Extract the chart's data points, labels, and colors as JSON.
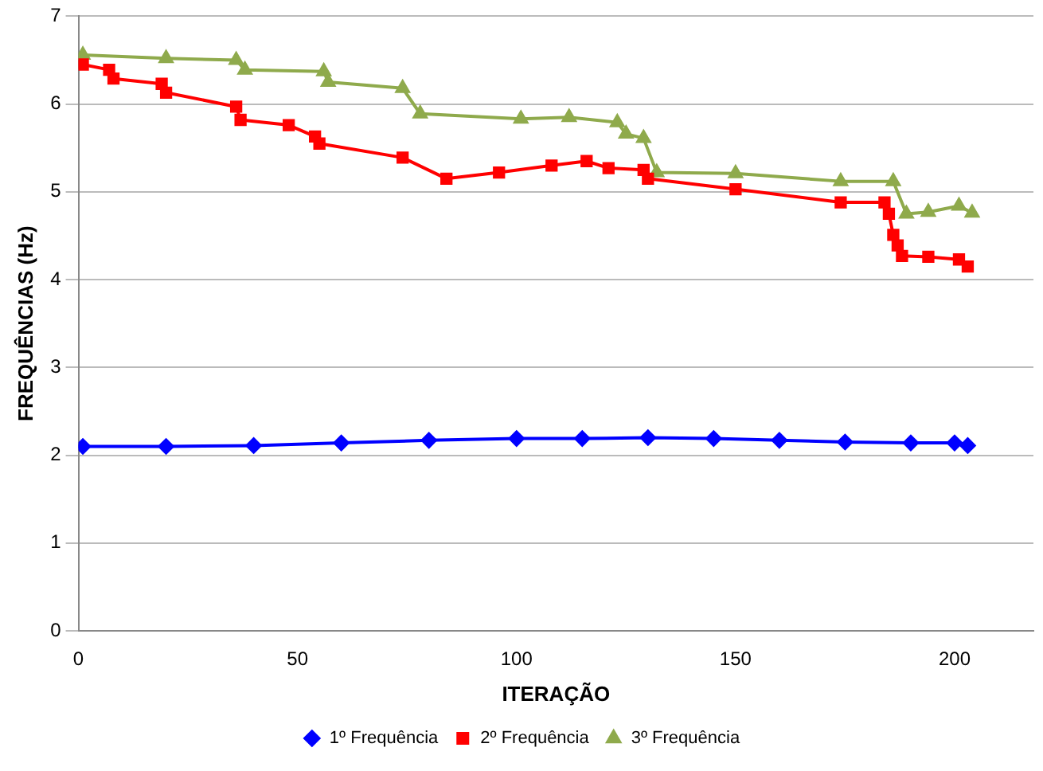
{
  "chart_data": {
    "type": "line",
    "xlabel": "ITERAÇÃO",
    "ylabel": "FREQUÊNCIAS (Hz)",
    "xlim": [
      0,
      218
    ],
    "xticks": [
      0,
      50,
      100,
      150,
      200
    ],
    "ylim": [
      0,
      7
    ],
    "yticks": [
      0,
      1,
      2,
      3,
      4,
      5,
      6,
      7
    ],
    "grid": "y",
    "legend": "bottom",
    "line_style": "solid",
    "series": [
      {
        "name": "1º Frequência",
        "color": "#0000ff",
        "marker": "diamond",
        "x": [
          1,
          20,
          40,
          60,
          80,
          100,
          115,
          130,
          145,
          160,
          175,
          190,
          200,
          203
        ],
        "values": [
          2.1,
          2.1,
          2.11,
          2.14,
          2.17,
          2.19,
          2.19,
          2.2,
          2.19,
          2.17,
          2.15,
          2.14,
          2.14,
          2.11
        ]
      },
      {
        "name": "2º Frequência",
        "color": "#ff0000",
        "marker": "square",
        "x": [
          1,
          7,
          8,
          19,
          20,
          36,
          37,
          48,
          54,
          55,
          74,
          84,
          96,
          108,
          116,
          121,
          129,
          130,
          150,
          174,
          184,
          185,
          186,
          187,
          188,
          194,
          201,
          203
        ],
        "values": [
          6.45,
          6.39,
          6.29,
          6.23,
          6.13,
          5.97,
          5.82,
          5.76,
          5.63,
          5.55,
          5.39,
          5.15,
          5.22,
          5.3,
          5.35,
          5.27,
          5.25,
          5.15,
          5.03,
          4.88,
          4.88,
          4.75,
          4.51,
          4.39,
          4.27,
          4.26,
          4.23,
          4.15
        ]
      },
      {
        "name": "3º Frequência",
        "color": "#8faa4c",
        "marker": "triangle",
        "x": [
          1,
          20,
          36,
          38,
          56,
          57,
          74,
          78,
          101,
          112,
          123,
          125,
          129,
          132,
          150,
          174,
          186,
          189,
          194,
          201,
          204
        ],
        "values": [
          6.56,
          6.52,
          6.5,
          6.39,
          6.37,
          6.25,
          6.18,
          5.89,
          5.83,
          5.85,
          5.79,
          5.66,
          5.61,
          5.22,
          5.21,
          5.12,
          5.12,
          4.75,
          4.77,
          4.84,
          4.76
        ]
      }
    ]
  }
}
